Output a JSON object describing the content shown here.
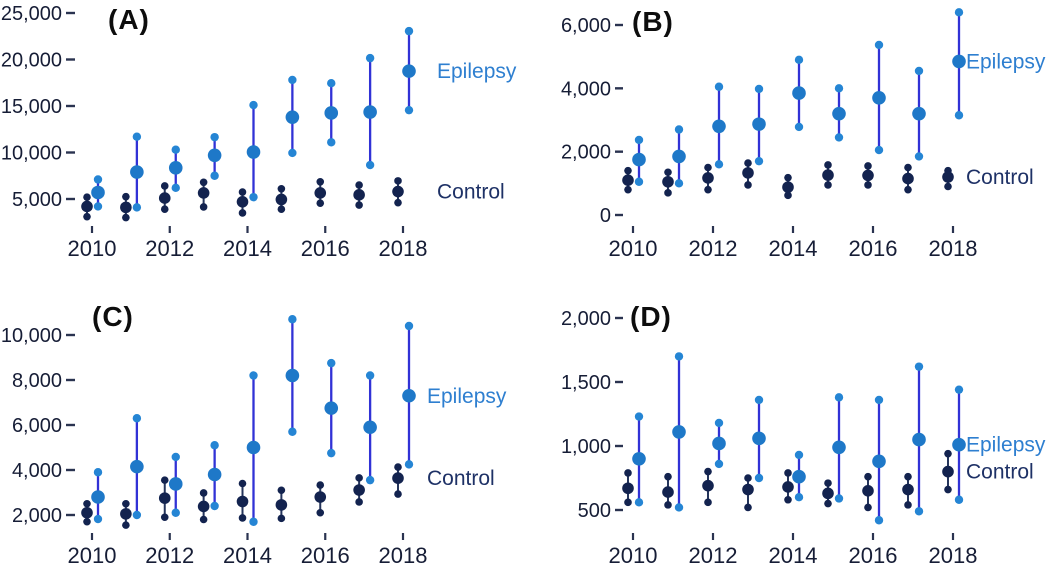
{
  "figure": {
    "background": "#ffffff",
    "series_labels": {
      "epilepsy": "Epilepsy",
      "control": "Control"
    },
    "colors": {
      "epilepsy_line": "#3132d6",
      "epilepsy_median_dot": "#1e78c8",
      "epilepsy_endpoint_dot": "#2585d4",
      "epilepsy_label_text": "#2e7fd0",
      "control_dot": "#13234f",
      "control_line": "#25355c",
      "control_label_text": "#1e3166",
      "axis_text": "#161d36",
      "tick_mark": "#2a3350"
    }
  },
  "chart_data": [
    {
      "type": "scatter",
      "panel_label": "(A)",
      "years": [
        2010,
        2011,
        2012,
        2013,
        2014,
        2015,
        2016,
        2017,
        2018
      ],
      "x_tick_years": [
        2010,
        2012,
        2014,
        2016,
        2018
      ],
      "x_tick_labels": [
        "2010",
        "2012",
        "2014",
        "2016",
        "2018"
      ],
      "y_tick_values": [
        25000,
        20000,
        15000,
        10000,
        5000
      ],
      "y_tick_labels": [
        "25,000",
        "20,000",
        "15,000",
        "10,000",
        "5,000"
      ],
      "ylim": [
        5000,
        25000
      ],
      "grid": false,
      "legend_position": "right",
      "series": [
        {
          "name": "Epilepsy",
          "role": "epilepsy",
          "min": [
            4200,
            4100,
            6200,
            7500,
            5200,
            9950,
            11100,
            8650,
            14550
          ],
          "median": [
            5700,
            7900,
            8350,
            9700,
            10050,
            13800,
            14250,
            14350,
            18750
          ],
          "max": [
            7100,
            11700,
            10300,
            11650,
            15100,
            17800,
            17450,
            20150,
            23050
          ]
        },
        {
          "name": "Control",
          "role": "control",
          "min": [
            3100,
            3000,
            3900,
            4150,
            3500,
            3900,
            4550,
            4350,
            4600
          ],
          "median": [
            4200,
            4100,
            5100,
            5650,
            4700,
            4950,
            5650,
            5450,
            5800
          ],
          "max": [
            5200,
            5250,
            6400,
            6800,
            5750,
            6100,
            6850,
            6500,
            6950
          ]
        }
      ]
    },
    {
      "type": "scatter",
      "panel_label": "(B)",
      "years": [
        2010,
        2011,
        2012,
        2013,
        2014,
        2015,
        2016,
        2017,
        2018
      ],
      "x_tick_years": [
        2010,
        2012,
        2014,
        2016,
        2018
      ],
      "x_tick_labels": [
        "2010",
        "2012",
        "2014",
        "2016",
        "2018"
      ],
      "y_tick_values": [
        6000,
        4000,
        2000,
        0
      ],
      "y_tick_labels": [
        "6,000",
        "4,000",
        "2,000",
        "0"
      ],
      "ylim": [
        0,
        6000
      ],
      "grid": false,
      "legend_position": "right",
      "series": [
        {
          "name": "Epilepsy",
          "role": "epilepsy",
          "min": [
            1050,
            1000,
            1600,
            1700,
            2780,
            2450,
            2050,
            1850,
            3150
          ],
          "median": [
            1750,
            1850,
            2800,
            2870,
            3850,
            3200,
            3700,
            3200,
            4850
          ],
          "max": [
            2370,
            2700,
            4050,
            3980,
            4900,
            4000,
            5370,
            4550,
            6400
          ]
        },
        {
          "name": "Control",
          "role": "control",
          "min": [
            800,
            700,
            800,
            950,
            620,
            950,
            950,
            800,
            900
          ],
          "median": [
            1100,
            1050,
            1170,
            1330,
            880,
            1260,
            1250,
            1150,
            1200
          ],
          "max": [
            1400,
            1350,
            1500,
            1640,
            1180,
            1580,
            1550,
            1500,
            1400
          ]
        }
      ]
    },
    {
      "type": "scatter",
      "panel_label": "(C)",
      "years": [
        2010,
        2011,
        2012,
        2013,
        2014,
        2015,
        2016,
        2017,
        2018
      ],
      "x_tick_years": [
        2010,
        2012,
        2014,
        2016,
        2018
      ],
      "x_tick_labels": [
        "2010",
        "2012",
        "2014",
        "2016",
        "2018"
      ],
      "y_tick_values": [
        10000,
        8000,
        6000,
        4000,
        2000
      ],
      "y_tick_labels": [
        "10,000",
        "8,000",
        "6,000",
        "4,000",
        "2,000"
      ],
      "ylim": [
        2000,
        10000
      ],
      "grid": false,
      "legend_position": "right",
      "series": [
        {
          "name": "Epilepsy",
          "role": "epilepsy",
          "min": [
            1820,
            2000,
            2100,
            2400,
            1700,
            5700,
            4750,
            3550,
            4250
          ],
          "median": [
            2800,
            4150,
            3380,
            3800,
            5000,
            8200,
            6750,
            5900,
            7300
          ],
          "max": [
            3900,
            6300,
            4580,
            5100,
            8200,
            10700,
            8750,
            8200,
            10400
          ]
        },
        {
          "name": "Control",
          "role": "control",
          "min": [
            1700,
            1550,
            1900,
            1800,
            1870,
            1850,
            2100,
            2580,
            2930
          ],
          "median": [
            2100,
            2050,
            2750,
            2380,
            2600,
            2450,
            2800,
            3110,
            3640
          ],
          "max": [
            2500,
            2500,
            3550,
            2980,
            3400,
            3100,
            3330,
            3650,
            4130
          ]
        }
      ]
    },
    {
      "type": "scatter",
      "panel_label": "(D)",
      "years": [
        2010,
        2011,
        2012,
        2013,
        2014,
        2015,
        2016,
        2017,
        2018
      ],
      "x_tick_years": [
        2010,
        2012,
        2014,
        2016,
        2018
      ],
      "x_tick_labels": [
        "2010",
        "2012",
        "2014",
        "2016",
        "2018"
      ],
      "y_tick_values": [
        2000,
        1500,
        1000,
        500
      ],
      "y_tick_labels": [
        "2,000",
        "1,500",
        "1,000",
        "500"
      ],
      "ylim": [
        400,
        2000
      ],
      "grid": false,
      "legend_position": "right",
      "series": [
        {
          "name": "Epilepsy",
          "role": "epilepsy",
          "min": [
            560,
            520,
            860,
            750,
            600,
            590,
            420,
            490,
            580
          ],
          "median": [
            900,
            1110,
            1020,
            1060,
            760,
            990,
            880,
            1050,
            1010
          ],
          "max": [
            1230,
            1700,
            1180,
            1360,
            930,
            1380,
            1360,
            1620,
            1440
          ]
        },
        {
          "name": "Control",
          "role": "control",
          "min": [
            560,
            540,
            560,
            520,
            580,
            550,
            520,
            540,
            660
          ],
          "median": [
            670,
            640,
            690,
            660,
            680,
            630,
            650,
            660,
            800
          ],
          "max": [
            790,
            760,
            800,
            750,
            790,
            710,
            760,
            760,
            940
          ]
        }
      ]
    }
  ]
}
